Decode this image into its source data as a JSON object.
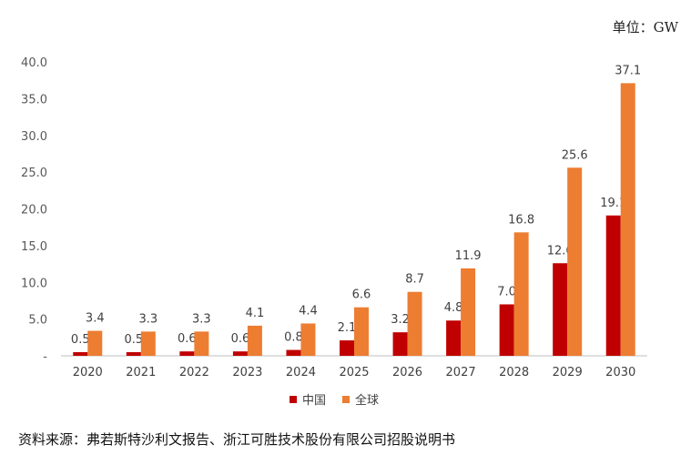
{
  "unit_label": "单位：GW",
  "source_note": "资料来源：弗若斯特沙利文报告、浙江可胜技术股份有限公司招股说明书",
  "colors": {
    "china": "#C00000",
    "global": "#ED7D31",
    "axis": "#BFBFBF"
  },
  "chart_data": {
    "type": "bar",
    "categories": [
      "2020",
      "2021",
      "2022",
      "2023",
      "2024",
      "2025",
      "2026",
      "2027",
      "2028",
      "2029",
      "2030"
    ],
    "series": [
      {
        "name": "中国",
        "values": [
          0.5,
          0.5,
          0.6,
          0.6,
          0.8,
          2.1,
          3.2,
          4.8,
          7.0,
          12.6,
          19.1
        ],
        "labels": [
          "0.5",
          "0.5",
          "0.6",
          "0.6",
          "0.8",
          "2.1",
          "3.2",
          "4.8",
          "7.0",
          "12.6",
          "19.1"
        ]
      },
      {
        "name": "全球",
        "values": [
          3.4,
          3.3,
          3.3,
          4.1,
          4.4,
          6.6,
          8.7,
          11.9,
          16.8,
          25.6,
          37.1
        ],
        "labels": [
          "3.4",
          "3.3",
          "3.3",
          "4.1",
          "4.4",
          "6.6",
          "8.7",
          "11.9",
          "16.8",
          "25.6",
          "37.1"
        ]
      }
    ],
    "ylim": [
      0,
      40
    ],
    "yticks": [
      "-",
      "5.0",
      "10.0",
      "15.0",
      "20.0",
      "25.0",
      "30.0",
      "35.0",
      "40.0"
    ],
    "grid": false,
    "legend_position": "bottom"
  }
}
